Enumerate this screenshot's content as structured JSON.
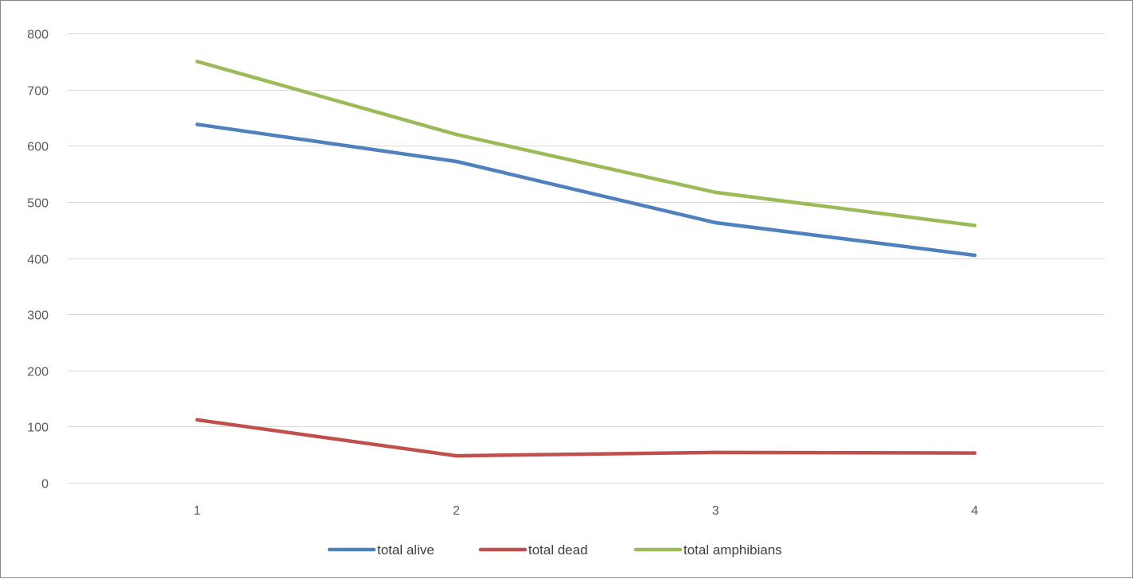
{
  "chart_data": {
    "type": "line",
    "title": "",
    "xlabel": "",
    "ylabel": "",
    "categories": [
      "1",
      "2",
      "3",
      "4"
    ],
    "ylim": [
      0,
      800
    ],
    "yticks": [
      0,
      100,
      200,
      300,
      400,
      500,
      600,
      700,
      800
    ],
    "grid": true,
    "legend_position": "bottom",
    "series": [
      {
        "name": "total alive",
        "color": "#4f81bd",
        "values": [
          638,
          572,
          463,
          405
        ]
      },
      {
        "name": "total dead",
        "color": "#c0504d",
        "values": [
          112,
          48,
          54,
          53
        ]
      },
      {
        "name": "total amphibians",
        "color": "#9bbb59",
        "values": [
          750,
          620,
          517,
          458
        ]
      }
    ]
  }
}
